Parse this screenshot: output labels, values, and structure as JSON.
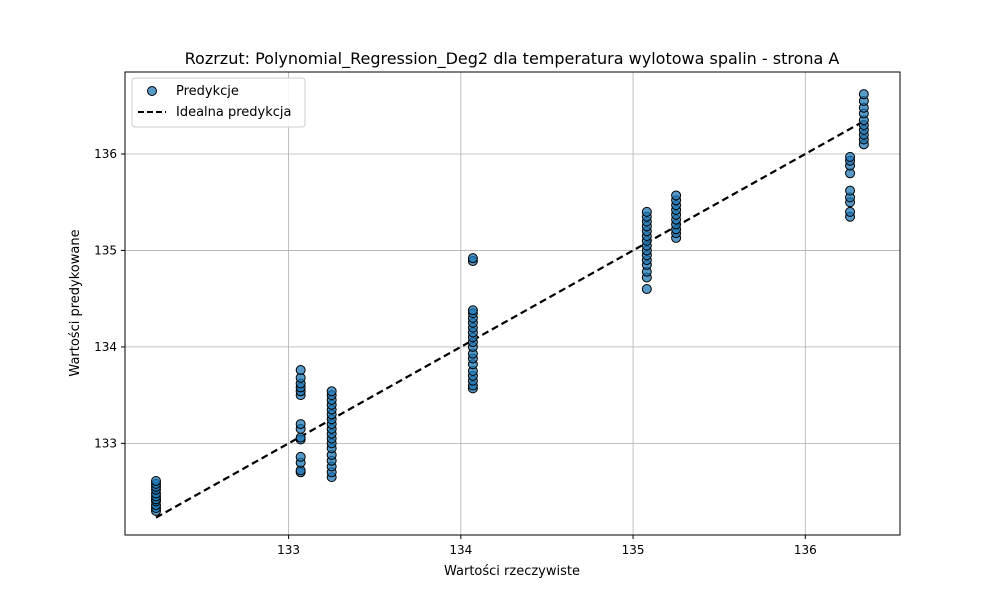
{
  "chart_data": {
    "type": "scatter",
    "title": "Rozrzut: Polynomial_Regression_Deg2 dla temperatura wylotowa spalin - strona A",
    "xlabel": "Wartości rzeczywiste",
    "ylabel": "Wartości predykowane",
    "xlim": [
      132.05,
      136.55
    ],
    "ylim": [
      132.05,
      136.85
    ],
    "xticks": [
      133,
      134,
      135,
      136
    ],
    "yticks": [
      133,
      134,
      135,
      136
    ],
    "grid": true,
    "legend": {
      "placement": "top-left",
      "entries": [
        {
          "label": "Predykcje",
          "marker": "circle"
        },
        {
          "label": "Idealna predykcja",
          "marker": "dashed-line"
        }
      ]
    },
    "colors": {
      "points": "#1f77b4",
      "point_edge": "#000000",
      "ideal_line": "#000000",
      "grid": "#b0b0b0"
    },
    "ideal_line": {
      "x": [
        132.23,
        136.34
      ],
      "y": [
        132.23,
        136.34
      ]
    },
    "series": [
      {
        "name": "Predykcje",
        "groups": [
          {
            "x": 132.23,
            "y": [
              132.3,
              132.33,
              132.36,
              132.4,
              132.42,
              132.45,
              132.48,
              132.52,
              132.55,
              132.58,
              132.61
            ]
          },
          {
            "x": 133.07,
            "y": [
              132.7,
              132.72,
              132.8,
              132.86,
              133.04,
              133.06,
              133.15,
              133.2,
              133.5,
              133.54,
              133.58,
              133.62,
              133.68,
              133.76
            ]
          },
          {
            "x": 133.25,
            "y": [
              132.65,
              132.7,
              132.76,
              132.82,
              132.88,
              132.95,
              133.0,
              133.05,
              133.1,
              133.15,
              133.2,
              133.25,
              133.3,
              133.35,
              133.4,
              133.45,
              133.5,
              133.54
            ]
          },
          {
            "x": 134.07,
            "y": [
              133.57,
              133.6,
              133.65,
              133.7,
              133.75,
              133.82,
              133.88,
              133.93,
              134.0,
              134.05,
              134.1,
              134.15,
              134.2,
              134.25,
              134.3,
              134.35,
              134.38,
              134.89,
              134.92
            ]
          },
          {
            "x": 135.08,
            "y": [
              134.6,
              134.72,
              134.78,
              134.85,
              134.9,
              134.95,
              135.0,
              135.05,
              135.1,
              135.15,
              135.2,
              135.25,
              135.3,
              135.35,
              135.4
            ]
          },
          {
            "x": 135.25,
            "y": [
              135.13,
              135.18,
              135.22,
              135.27,
              135.32,
              135.37,
              135.42,
              135.47,
              135.52,
              135.57
            ]
          },
          {
            "x": 136.26,
            "y": [
              135.35,
              135.4,
              135.5,
              135.55,
              135.62,
              135.8,
              135.88,
              135.93,
              135.97
            ]
          },
          {
            "x": 136.34,
            "y": [
              136.1,
              136.15,
              136.2,
              136.25,
              136.3,
              136.35,
              136.42,
              136.48,
              136.55,
              136.62
            ]
          }
        ]
      }
    ]
  }
}
